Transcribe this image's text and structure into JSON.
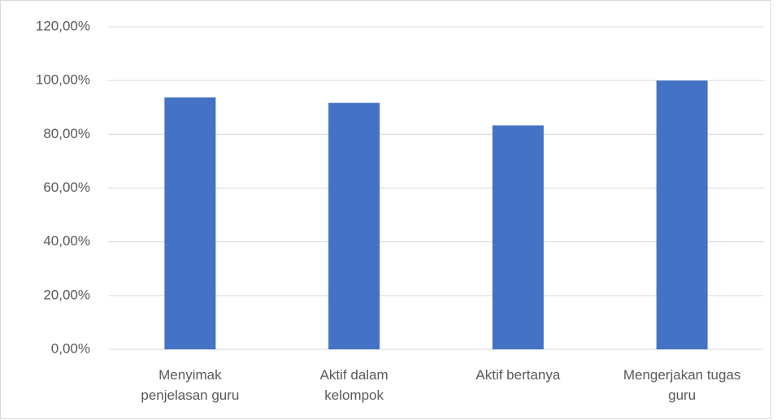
{
  "chart_data": {
    "type": "bar",
    "categories": [
      "Menyimak penjelasan guru",
      "Aktif dalam kelompok",
      "Aktif bertanya",
      "Mengerjakan tugas guru"
    ],
    "values": [
      93.75,
      91.7,
      83.3,
      100
    ],
    "color": "#4472c4",
    "ylim": [
      0,
      120
    ],
    "yticks": [
      {
        "value": 0,
        "label": "0,00%"
      },
      {
        "value": 20,
        "label": "20,00%"
      },
      {
        "value": 40,
        "label": "40,00%"
      },
      {
        "value": 60,
        "label": "60,00%"
      },
      {
        "value": 80,
        "label": "80,00%"
      },
      {
        "value": 100,
        "label": "100,00%"
      },
      {
        "value": 120,
        "label": "120,00%"
      }
    ],
    "grid": true
  }
}
